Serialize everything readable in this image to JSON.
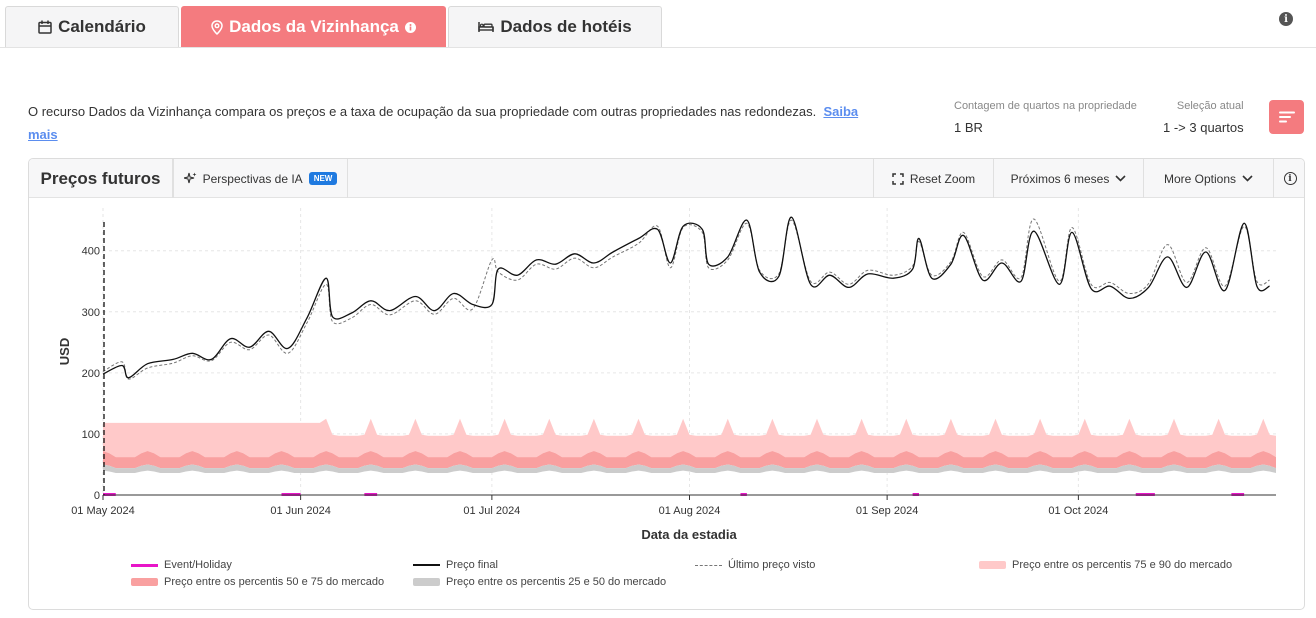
{
  "tabs": [
    {
      "label": "Calendário",
      "icon": "calendar-icon",
      "active": false
    },
    {
      "label": "Dados da Vizinhança",
      "icon": "location-pin-icon",
      "active": true
    },
    {
      "label": "Dados de hotéis",
      "icon": "bed-icon",
      "active": false
    }
  ],
  "description": {
    "text": "O recurso Dados da Vizinhança compara os preços e a taxa de ocupação da sua propriedade com outras propriedades nas redondezas.",
    "link": "Saiba mais"
  },
  "meta": {
    "room_count_label": "Contagem de quartos na propriedade",
    "room_count_value": "1 BR",
    "selection_label": "Seleção atual",
    "selection_value": "1 -> 3 quartos"
  },
  "toolbar": {
    "title": "Preços futuros",
    "ai_label": "Perspectivas de IA",
    "ai_badge": "NEW",
    "reset_zoom": "Reset Zoom",
    "period": "Próximos 6 meses",
    "more_options": "More Options"
  },
  "colors": {
    "accent": "#f47b7f",
    "final_price": "#111111",
    "last_seen": "#777777",
    "p75_90": "#ffc9c9",
    "p50_75": "#f9a0a0",
    "p25_50": "#cccccc",
    "event": "#e815c8"
  },
  "chart_data": {
    "type": "line",
    "xlabel": "Data da estadia",
    "ylabel": "USD",
    "x_range": [
      "2024-05-01",
      "2024-10-31"
    ],
    "ylim": [
      0,
      470
    ],
    "y_ticks": [
      0,
      100,
      200,
      300,
      400
    ],
    "x_ticks": [
      {
        "date": "2024-05-01",
        "label": "01 May 2024"
      },
      {
        "date": "2024-06-01",
        "label": "01 Jun 2024"
      },
      {
        "date": "2024-07-01",
        "label": "01 Jul 2024"
      },
      {
        "date": "2024-08-01",
        "label": "01 Aug 2024"
      },
      {
        "date": "2024-09-01",
        "label": "01 Sep 2024"
      },
      {
        "date": "2024-10-01",
        "label": "01 Oct 2024"
      }
    ],
    "grid": true,
    "today_marker": "2024-05-01",
    "final_price": [
      [
        "2024-05-01",
        198
      ],
      [
        "2024-05-04",
        212
      ],
      [
        "2024-05-05",
        192
      ],
      [
        "2024-05-08",
        215
      ],
      [
        "2024-05-12",
        222
      ],
      [
        "2024-05-15",
        232
      ],
      [
        "2024-05-18",
        222
      ],
      [
        "2024-05-21",
        256
      ],
      [
        "2024-05-24",
        242
      ],
      [
        "2024-05-27",
        268
      ],
      [
        "2024-05-30",
        240
      ],
      [
        "2024-06-02",
        290
      ],
      [
        "2024-06-05",
        355
      ],
      [
        "2024-06-06",
        292
      ],
      [
        "2024-06-09",
        298
      ],
      [
        "2024-06-12",
        318
      ],
      [
        "2024-06-15",
        302
      ],
      [
        "2024-06-19",
        325
      ],
      [
        "2024-06-22",
        302
      ],
      [
        "2024-06-25",
        330
      ],
      [
        "2024-06-28",
        312
      ],
      [
        "2024-07-01",
        312
      ],
      [
        "2024-07-02",
        370
      ],
      [
        "2024-07-05",
        360
      ],
      [
        "2024-07-08",
        385
      ],
      [
        "2024-07-11",
        378
      ],
      [
        "2024-07-14",
        395
      ],
      [
        "2024-07-17",
        380
      ],
      [
        "2024-07-20",
        398
      ],
      [
        "2024-07-24",
        420
      ],
      [
        "2024-07-27",
        435
      ],
      [
        "2024-07-29",
        380
      ],
      [
        "2024-07-31",
        440
      ],
      [
        "2024-08-03",
        435
      ],
      [
        "2024-08-04",
        378
      ],
      [
        "2024-08-07",
        390
      ],
      [
        "2024-08-10",
        450
      ],
      [
        "2024-08-12",
        365
      ],
      [
        "2024-08-15",
        358
      ],
      [
        "2024-08-17",
        455
      ],
      [
        "2024-08-20",
        345
      ],
      [
        "2024-08-23",
        360
      ],
      [
        "2024-08-26",
        340
      ],
      [
        "2024-08-29",
        362
      ],
      [
        "2024-09-02",
        355
      ],
      [
        "2024-09-05",
        370
      ],
      [
        "2024-09-06",
        420
      ],
      [
        "2024-09-08",
        355
      ],
      [
        "2024-09-11",
        378
      ],
      [
        "2024-09-13",
        425
      ],
      [
        "2024-09-16",
        352
      ],
      [
        "2024-09-19",
        380
      ],
      [
        "2024-09-22",
        350
      ],
      [
        "2024-09-24",
        432
      ],
      [
        "2024-09-28",
        345
      ],
      [
        "2024-09-30",
        430
      ],
      [
        "2024-10-03",
        338
      ],
      [
        "2024-10-06",
        342
      ],
      [
        "2024-10-09",
        322
      ],
      [
        "2024-10-12",
        340
      ],
      [
        "2024-10-15",
        390
      ],
      [
        "2024-10-18",
        340
      ],
      [
        "2024-10-21",
        398
      ],
      [
        "2024-10-24",
        335
      ],
      [
        "2024-10-27",
        445
      ],
      [
        "2024-10-29",
        342
      ],
      [
        "2024-10-31",
        342
      ]
    ],
    "last_seen_price": [
      [
        "2024-05-01",
        202
      ],
      [
        "2024-05-04",
        218
      ],
      [
        "2024-05-05",
        190
      ],
      [
        "2024-05-08",
        208
      ],
      [
        "2024-05-12",
        216
      ],
      [
        "2024-05-15",
        228
      ],
      [
        "2024-05-18",
        220
      ],
      [
        "2024-05-21",
        250
      ],
      [
        "2024-05-24",
        238
      ],
      [
        "2024-05-27",
        262
      ],
      [
        "2024-05-30",
        232
      ],
      [
        "2024-06-02",
        282
      ],
      [
        "2024-06-05",
        345
      ],
      [
        "2024-06-06",
        284
      ],
      [
        "2024-06-09",
        290
      ],
      [
        "2024-06-12",
        312
      ],
      [
        "2024-06-15",
        295
      ],
      [
        "2024-06-19",
        318
      ],
      [
        "2024-06-22",
        296
      ],
      [
        "2024-06-25",
        322
      ],
      [
        "2024-06-28",
        305
      ],
      [
        "2024-07-01",
        385
      ],
      [
        "2024-07-02",
        365
      ],
      [
        "2024-07-05",
        352
      ],
      [
        "2024-07-08",
        378
      ],
      [
        "2024-07-11",
        370
      ],
      [
        "2024-07-14",
        388
      ],
      [
        "2024-07-17",
        372
      ],
      [
        "2024-07-20",
        390
      ],
      [
        "2024-07-24",
        412
      ],
      [
        "2024-07-27",
        440
      ],
      [
        "2024-07-29",
        372
      ],
      [
        "2024-07-31",
        438
      ],
      [
        "2024-08-03",
        430
      ],
      [
        "2024-08-04",
        372
      ],
      [
        "2024-08-07",
        385
      ],
      [
        "2024-08-10",
        445
      ],
      [
        "2024-08-12",
        368
      ],
      [
        "2024-08-15",
        362
      ],
      [
        "2024-08-17",
        450
      ],
      [
        "2024-08-20",
        350
      ],
      [
        "2024-08-23",
        365
      ],
      [
        "2024-08-26",
        345
      ],
      [
        "2024-08-29",
        368
      ],
      [
        "2024-09-02",
        360
      ],
      [
        "2024-09-05",
        375
      ],
      [
        "2024-09-06",
        415
      ],
      [
        "2024-09-08",
        360
      ],
      [
        "2024-09-11",
        382
      ],
      [
        "2024-09-13",
        430
      ],
      [
        "2024-09-16",
        358
      ],
      [
        "2024-09-19",
        385
      ],
      [
        "2024-09-22",
        356
      ],
      [
        "2024-09-24",
        452
      ],
      [
        "2024-09-28",
        350
      ],
      [
        "2024-09-30",
        438
      ],
      [
        "2024-10-03",
        345
      ],
      [
        "2024-10-06",
        348
      ],
      [
        "2024-10-09",
        330
      ],
      [
        "2024-10-12",
        346
      ],
      [
        "2024-10-15",
        410
      ],
      [
        "2024-10-18",
        348
      ],
      [
        "2024-10-21",
        405
      ],
      [
        "2024-10-24",
        342
      ],
      [
        "2024-10-27",
        440
      ],
      [
        "2024-10-29",
        350
      ],
      [
        "2024-10-31",
        352
      ]
    ],
    "bands": {
      "p25_50": {
        "low": 38,
        "high": 48
      },
      "p50_75": {
        "low": 48,
        "high": 68
      },
      "p75_90": {
        "low": 68,
        "high_may": 118,
        "high": 97,
        "peak": 125
      }
    },
    "events": [
      [
        "2024-05-01",
        "2024-05-03"
      ],
      [
        "2024-05-29",
        "2024-06-01"
      ],
      [
        "2024-06-11",
        "2024-06-13"
      ],
      [
        "2024-08-09",
        "2024-08-10"
      ],
      [
        "2024-09-05",
        "2024-09-06"
      ],
      [
        "2024-10-10",
        "2024-10-13"
      ],
      [
        "2024-10-25",
        "2024-10-27"
      ]
    ],
    "legend": [
      {
        "key": "event",
        "label": "Event/Holiday"
      },
      {
        "key": "final",
        "label": "Preço final"
      },
      {
        "key": "last_seen",
        "label": "Último preço visto"
      },
      {
        "key": "p75_90",
        "label": "Preço entre os percentis 75 e 90 do mercado"
      },
      {
        "key": "p50_75",
        "label": "Preço entre os percentis 50 e 75 do mercado"
      },
      {
        "key": "p25_50",
        "label": "Preço entre os percentis 25 e 50 do mercado"
      }
    ]
  }
}
